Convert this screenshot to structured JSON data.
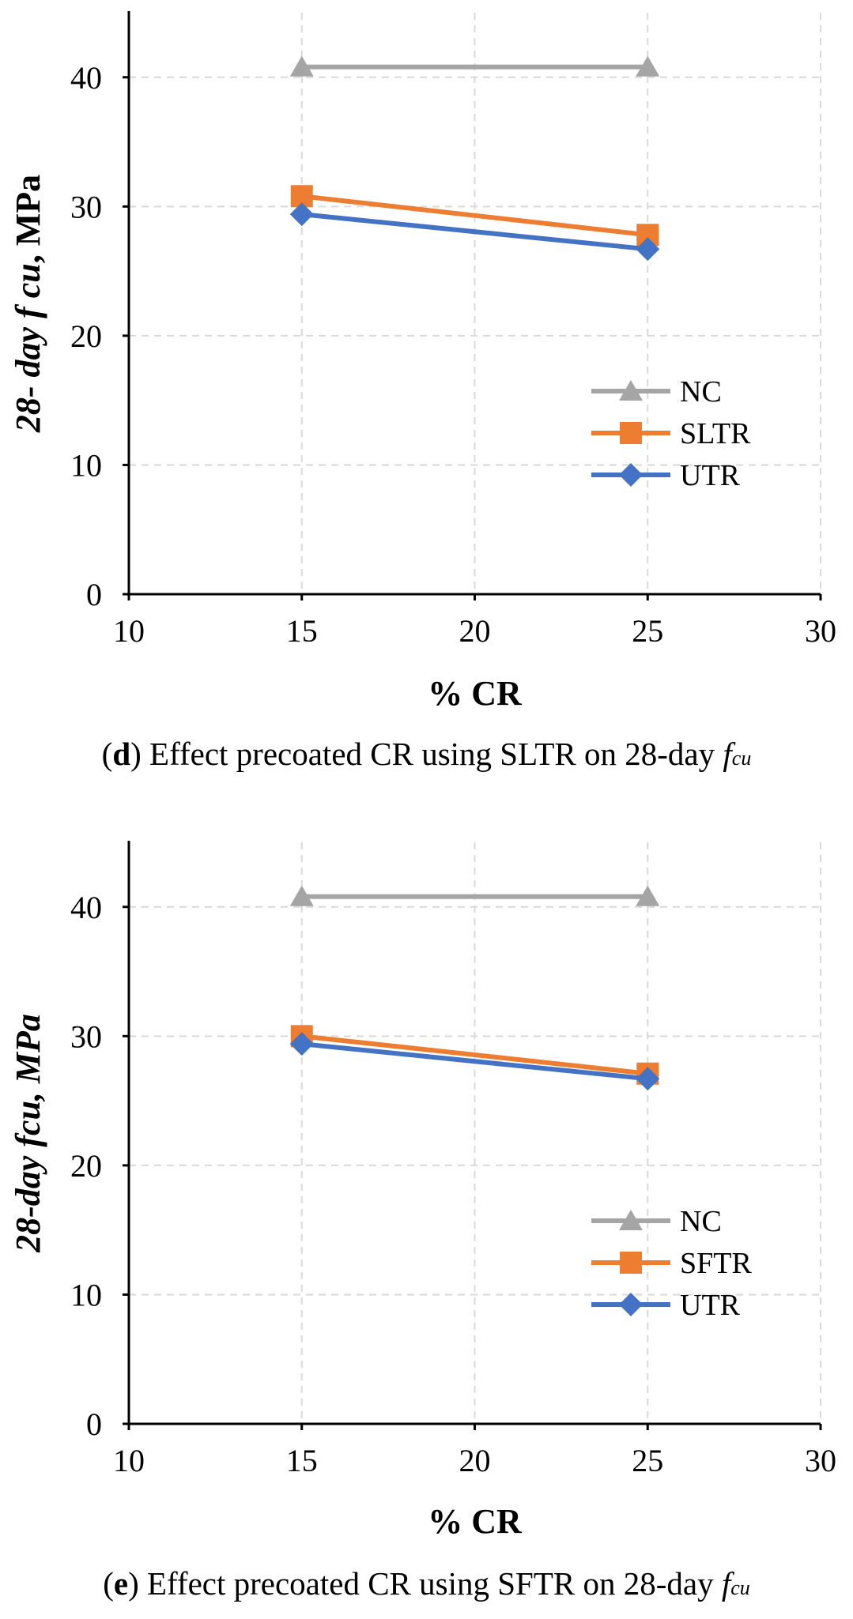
{
  "chart_data": [
    {
      "type": "line",
      "panel": "d",
      "xlabel": "% CR",
      "ylabel": {
        "prefix": "28- day ",
        "symbol": "f cu",
        "suffix": ", MPa"
      },
      "xlim": [
        10,
        30
      ],
      "ylim": [
        0,
        45
      ],
      "x_ticks": [
        10,
        15,
        20,
        25,
        30
      ],
      "y_ticks": [
        0,
        10,
        20,
        30,
        40
      ],
      "grid": true,
      "legend_position": "lower-right",
      "x": [
        15,
        25
      ],
      "series": [
        {
          "name": "NC",
          "values": [
            40.8,
            40.8
          ],
          "color": "#a5a5a5",
          "marker": "triangle"
        },
        {
          "name": "SLTR",
          "values": [
            30.8,
            27.8
          ],
          "color": "#ed7d31",
          "marker": "square"
        },
        {
          "name": "UTR",
          "values": [
            29.4,
            26.7
          ],
          "color": "#4472c4",
          "marker": "diamond"
        }
      ],
      "caption": {
        "label": "d",
        "text": "Effect precoated CR using SLTR on 28-day ",
        "symbol": "f",
        "subscript": "cu"
      }
    },
    {
      "type": "line",
      "panel": "e",
      "xlabel": "% CR",
      "ylabel": {
        "prefix": "28-day ",
        "symbol": "fcu",
        "suffix": ", MPa"
      },
      "xlim": [
        10,
        30
      ],
      "ylim": [
        0,
        45
      ],
      "x_ticks": [
        10,
        15,
        20,
        25,
        30
      ],
      "y_ticks": [
        0,
        10,
        20,
        30,
        40
      ],
      "grid": true,
      "legend_position": "lower-right",
      "x": [
        15,
        25
      ],
      "series": [
        {
          "name": "NC",
          "values": [
            40.8,
            40.8
          ],
          "color": "#a5a5a5",
          "marker": "triangle"
        },
        {
          "name": "SFTR",
          "values": [
            30.0,
            27.1
          ],
          "color": "#ed7d31",
          "marker": "square"
        },
        {
          "name": "UTR",
          "values": [
            29.4,
            26.7
          ],
          "color": "#4472c4",
          "marker": "diamond"
        }
      ],
      "caption": {
        "label": "e",
        "text": "Effect precoated CR using SFTR on 28-day ",
        "symbol": "f",
        "subscript": "cu"
      }
    }
  ]
}
